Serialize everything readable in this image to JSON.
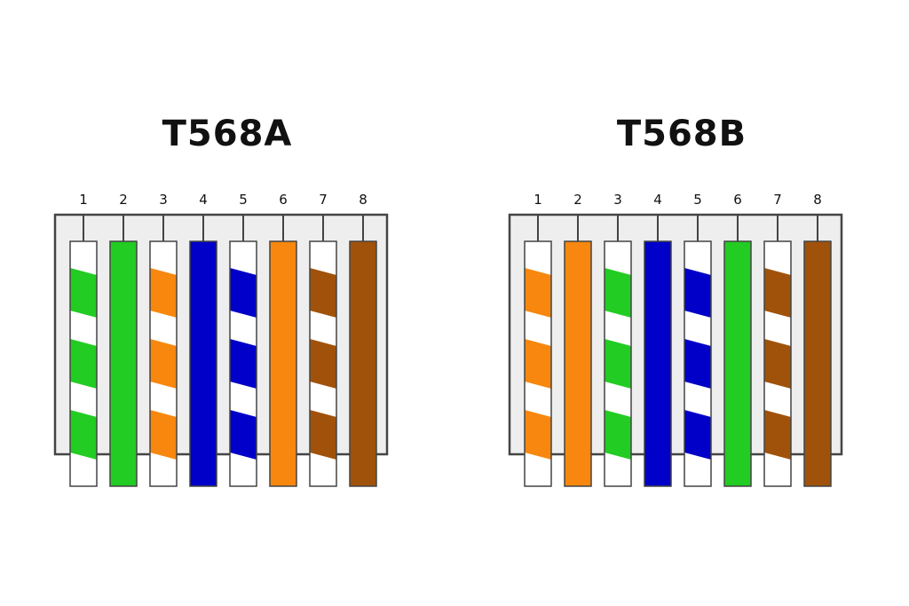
{
  "diagrams": [
    {
      "id": "diagram-a",
      "title": "T568A",
      "pins": [
        {
          "number": "1",
          "color": "#22cc22",
          "striped": true
        },
        {
          "number": "2",
          "color": "#22cc22",
          "striped": false
        },
        {
          "number": "3",
          "color": "#f7870e",
          "striped": true
        },
        {
          "number": "4",
          "color": "#0000c8",
          "striped": false
        },
        {
          "number": "5",
          "color": "#0000c8",
          "striped": true
        },
        {
          "number": "6",
          "color": "#f7870e",
          "striped": false
        },
        {
          "number": "7",
          "color": "#a0520a",
          "striped": true
        },
        {
          "number": "8",
          "color": "#a0520a",
          "striped": false
        }
      ]
    },
    {
      "id": "diagram-b",
      "title": "T568B",
      "pins": [
        {
          "number": "1",
          "color": "#f7870e",
          "striped": true
        },
        {
          "number": "2",
          "color": "#f7870e",
          "striped": false
        },
        {
          "number": "3",
          "color": "#22cc22",
          "striped": true
        },
        {
          "number": "4",
          "color": "#0000c8",
          "striped": false
        },
        {
          "number": "5",
          "color": "#0000c8",
          "striped": true
        },
        {
          "number": "6",
          "color": "#22cc22",
          "striped": false
        },
        {
          "number": "7",
          "color": "#a0520a",
          "striped": true
        },
        {
          "number": "8",
          "color": "#a0520a",
          "striped": false
        }
      ]
    }
  ]
}
